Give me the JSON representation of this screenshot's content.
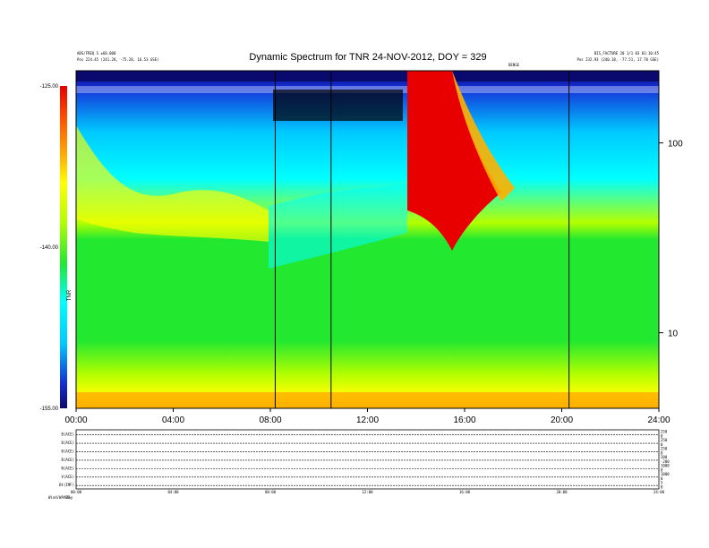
{
  "chart_data": {
    "type": "heatmap",
    "title": "Dynamic Spectrum for TNR 24-NOV-2012, DOY = 329",
    "header_left_line1": "ABS/FREQ S ±60.000",
    "header_left_line2": "Pos    224.45 (241.28, -75.28, 16.53 GSE)",
    "header_right_line1": "BIS_FACTURE  20 1/1 03 01:10:45",
    "header_right_line2": "Pos    232.93 (240.18, -77.51, 17.78 GSE)",
    "header_right_sub": "DENSE",
    "x_ticks": [
      "00:00",
      "04:00",
      "08:00",
      "12:00",
      "16:00",
      "20:00",
      "24:00"
    ],
    "x_range_hours": [
      0,
      24
    ],
    "y_scale": "log",
    "y_ticks": [
      10,
      100
    ],
    "y_range_khz": [
      4,
      240
    ],
    "colorbar": {
      "ticks": [
        "-125.00",
        "-140.00",
        "-155.00"
      ],
      "range": [
        -155,
        -125
      ],
      "label": "TNR"
    },
    "vertical_markers_hours": [
      8.2,
      10.5,
      20.3
    ],
    "panel_labels": [
      "B(ACE)",
      "B(ACE)",
      "B(ACE)",
      "B(ACE)",
      "N(ACE)",
      "V(ACE)",
      "Bt(IMF)"
    ],
    "panel_right_ticks": [
      "250",
      "0",
      "250",
      "0",
      "250",
      "0",
      "200",
      "-200",
      "1000",
      "0",
      "1000",
      "0",
      "5",
      "0"
    ],
    "panel_x_ticks": [
      "00:00",
      "04:00",
      "08:00",
      "12:00",
      "16:00",
      "20:00",
      "24:00"
    ],
    "footer_left": "Wind/WAVES",
    "footer_small": "day"
  },
  "colors": {
    "scale": [
      "#0a0a6e",
      "#1530d8",
      "#00c8ff",
      "#00ffff",
      "#22e830",
      "#b4ff00",
      "#ffff00",
      "#ffb000",
      "#ff5000",
      "#e80000"
    ],
    "marker": "#000000"
  }
}
